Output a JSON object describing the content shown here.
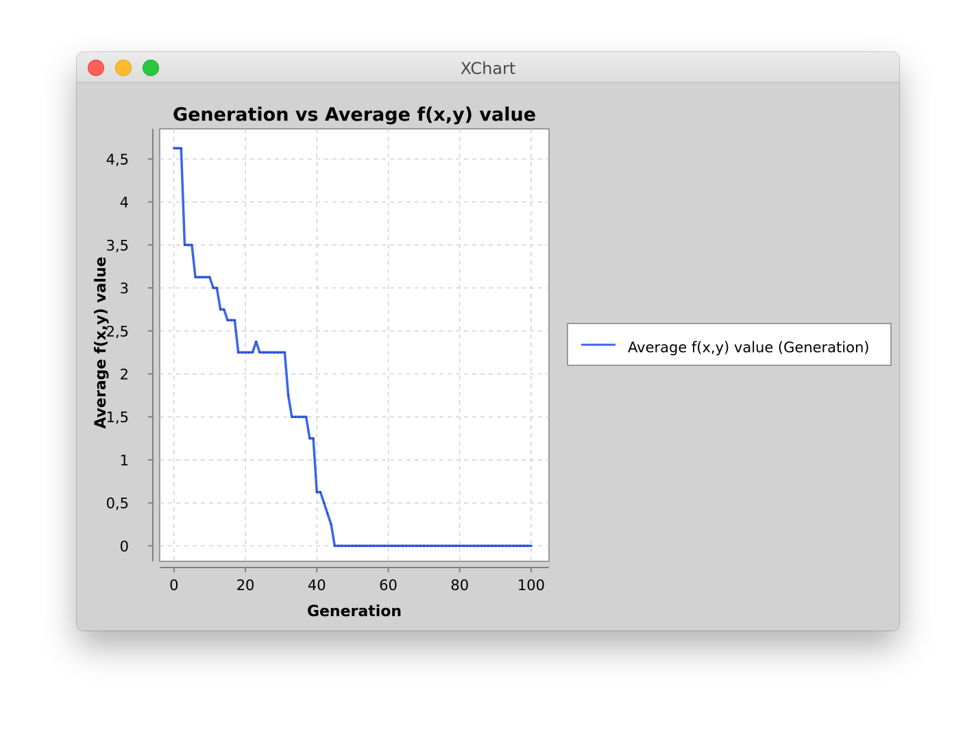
{
  "window": {
    "title": "XChart"
  },
  "chart_data": {
    "type": "line",
    "title": "Generation vs Average f(x,y) value",
    "xlabel": "Generation",
    "ylabel": "Average f(x,y) value",
    "xlim": [
      -4,
      105
    ],
    "ylim": [
      -0.18,
      4.85
    ],
    "xticks": [
      0,
      20,
      40,
      60,
      80,
      100
    ],
    "xtick_labels": [
      "0",
      "20",
      "40",
      "60",
      "80",
      "100"
    ],
    "yticks": [
      0,
      0.5,
      1,
      1.5,
      2,
      2.5,
      3,
      3.5,
      4,
      4.5
    ],
    "ytick_labels": [
      "0",
      "0,5",
      "1",
      "1,5",
      "2",
      "2,5",
      "3",
      "3,5",
      "4",
      "4,5"
    ],
    "grid": true,
    "legend_position": "right",
    "series": [
      {
        "name": "Average f(x,y) value (Generation)",
        "color": "#3c64f0",
        "x": [
          0,
          1,
          2,
          3,
          4,
          5,
          6,
          7,
          8,
          9,
          10,
          11,
          12,
          13,
          14,
          15,
          16,
          17,
          18,
          19,
          20,
          21,
          22,
          23,
          24,
          25,
          26,
          27,
          28,
          29,
          30,
          31,
          32,
          33,
          34,
          35,
          36,
          37,
          38,
          39,
          40,
          41,
          42,
          43,
          44,
          45,
          46,
          47,
          48,
          49,
          50,
          51,
          52,
          53,
          54,
          55,
          56,
          57,
          58,
          59,
          60,
          61,
          62,
          63,
          64,
          65,
          66,
          67,
          68,
          69,
          70,
          71,
          72,
          73,
          74,
          75,
          76,
          77,
          78,
          79,
          80,
          81,
          82,
          83,
          84,
          85,
          86,
          87,
          88,
          89,
          90,
          91,
          92,
          93,
          94,
          95,
          96,
          97,
          98,
          99,
          100
        ],
        "y": [
          4.625,
          4.625,
          4.625,
          3.5,
          3.5,
          3.5,
          3.125,
          3.125,
          3.125,
          3.125,
          3.125,
          3.0,
          3.0,
          2.75,
          2.75,
          2.625,
          2.625,
          2.625,
          2.25,
          2.25,
          2.25,
          2.25,
          2.25,
          2.375,
          2.25,
          2.25,
          2.25,
          2.25,
          2.25,
          2.25,
          2.25,
          2.25,
          1.75,
          1.5,
          1.5,
          1.5,
          1.5,
          1.5,
          1.25,
          1.25,
          0.625,
          0.625,
          0.5,
          0.375,
          0.25,
          0,
          0,
          0,
          0,
          0,
          0,
          0,
          0,
          0,
          0,
          0,
          0,
          0,
          0,
          0,
          0,
          0,
          0,
          0,
          0,
          0,
          0,
          0,
          0,
          0,
          0,
          0,
          0,
          0,
          0,
          0,
          0,
          0,
          0,
          0,
          0,
          0,
          0,
          0,
          0,
          0,
          0,
          0,
          0,
          0,
          0,
          0,
          0,
          0,
          0,
          0,
          0,
          0,
          0,
          0,
          0
        ]
      }
    ]
  }
}
